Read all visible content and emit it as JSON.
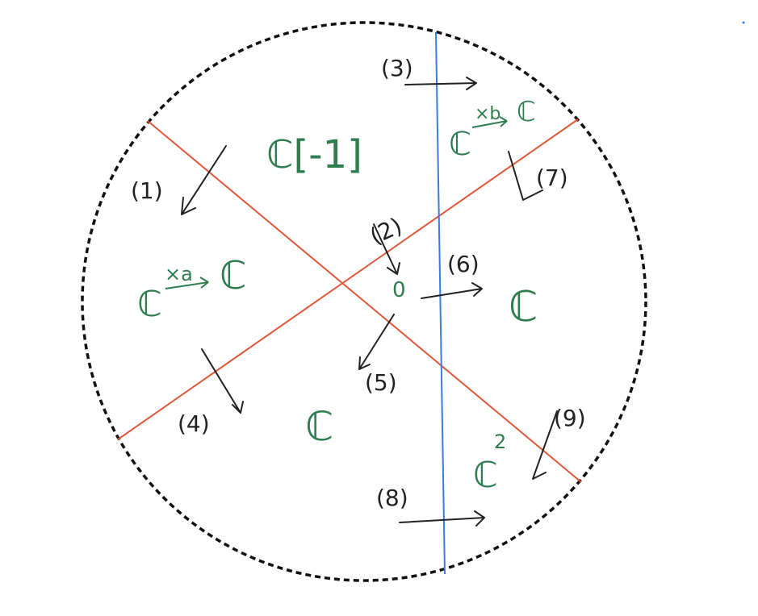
{
  "colors": {
    "boundary": "#111111",
    "red_line": "#e0573a",
    "blue_line": "#3a7be0",
    "arrow": "#222222",
    "green_text": "#2e7d4f"
  },
  "labels": {
    "l1": "(1)",
    "l2": "(2)",
    "l3": "(3)",
    "l4": "(4)",
    "l5": "(5)",
    "l6": "(6)",
    "l7": "(7)",
    "l8": "(8)",
    "l9": "(9)"
  },
  "regions": {
    "top": "ℂ[-1]",
    "top_right_base": "ℂ",
    "top_right_arrow": "×b",
    "top_right_target": "ℂ",
    "left_base": "ℂ",
    "left_arrow": "×a",
    "left_target": "ℂ",
    "right": "ℂ",
    "bottom": "ℂ",
    "bottom_right_base": "ℂ",
    "bottom_right_exp": "2",
    "origin": "0"
  }
}
